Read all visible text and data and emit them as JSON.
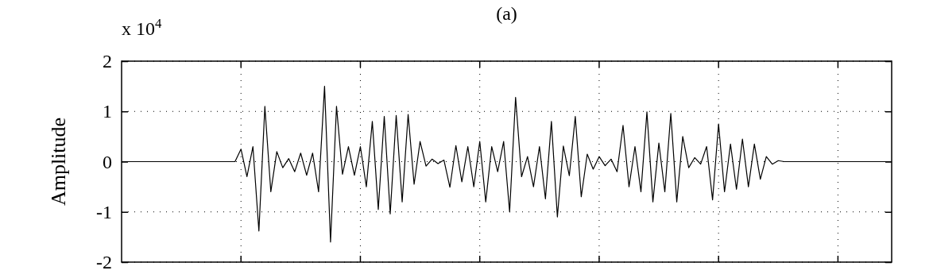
{
  "chart_data": {
    "type": "line",
    "title": "(a)",
    "ylabel": "Amplitude",
    "annotations": [
      "x 10$^{4}$"
    ],
    "categories": [
      null,
      null,
      null,
      null,
      null,
      null,
      null,
      null,
      null,
      null,
      null,
      null,
      null,
      null,
      null,
      null,
      null,
      null,
      null,
      null,
      null,
      null,
      null,
      null,
      null,
      null,
      null,
      null,
      null,
      null,
      null,
      null,
      null,
      null,
      null,
      null,
      null,
      null,
      null,
      null,
      null,
      null,
      null,
      null,
      null,
      null,
      null,
      null,
      null,
      null,
      null,
      null,
      null,
      null,
      null,
      null,
      null,
      null,
      null,
      null,
      null,
      null,
      null,
      null,
      null,
      null,
      null,
      null,
      null,
      null,
      null,
      null,
      null,
      null,
      null,
      null,
      null,
      null,
      null,
      null,
      null,
      null,
      null,
      null,
      null,
      null,
      null,
      null,
      null,
      null,
      null,
      null,
      null,
      null,
      null,
      null,
      null,
      null,
      null,
      null,
      null,
      null,
      null,
      null,
      null,
      null,
      null,
      null,
      null,
      null,
      null,
      null,
      null,
      null,
      null,
      null,
      null,
      null,
      null,
      null,
      null,
      null,
      null,
      null,
      null,
      null,
      null,
      null,
      null,
      null
    ],
    "ylim": [
      -2,
      2
    ],
    "yticks": [
      -2,
      -1,
      0,
      1,
      2
    ],
    "grid": true,
    "line_style": "solid",
    "marker": "none",
    "series": [
      {
        "color": "#000000",
        "values": [
          0,
          0,
          0,
          0,
          0,
          0,
          0,
          0,
          0,
          0,
          0,
          0,
          0,
          0,
          0,
          0,
          0,
          0,
          0,
          0,
          0.25,
          -0.3,
          0.3,
          -1.38,
          1.1,
          -0.6,
          0.2,
          -0.12,
          0.06,
          -0.2,
          0.17,
          -0.27,
          0.17,
          -0.6,
          1.5,
          -1.6,
          1.1,
          -0.25,
          0.3,
          -0.27,
          0.3,
          -0.5,
          0.8,
          -0.95,
          0.9,
          -1.04,
          0.92,
          -0.8,
          0.94,
          -0.45,
          0.4,
          -0.09,
          0.05,
          -0.04,
          0.03,
          -0.51,
          0.32,
          -0.4,
          0.3,
          -0.5,
          0.4,
          -0.8,
          0.3,
          -0.2,
          0.4,
          -1.0,
          1.28,
          -0.3,
          0.1,
          -0.5,
          0.3,
          -0.74,
          0.8,
          -1.1,
          0.31,
          -0.28,
          0.9,
          -0.7,
          0.15,
          -0.15,
          0.1,
          -0.08,
          0.05,
          -0.2,
          0.72,
          -0.5,
          0.3,
          -0.6,
          0.99,
          -0.8,
          0.37,
          -0.6,
          0.96,
          -0.8,
          0.5,
          -0.12,
          0.08,
          -0.05,
          0.3,
          -0.76,
          0.75,
          -0.6,
          0.35,
          -0.55,
          0.45,
          -0.5,
          0.35,
          -0.35,
          0.1,
          -0.05,
          0.02,
          0,
          0,
          0,
          0,
          0,
          0,
          0,
          0,
          0,
          0,
          0,
          0,
          0,
          0,
          0,
          0,
          0,
          0,
          0
        ]
      }
    ]
  }
}
